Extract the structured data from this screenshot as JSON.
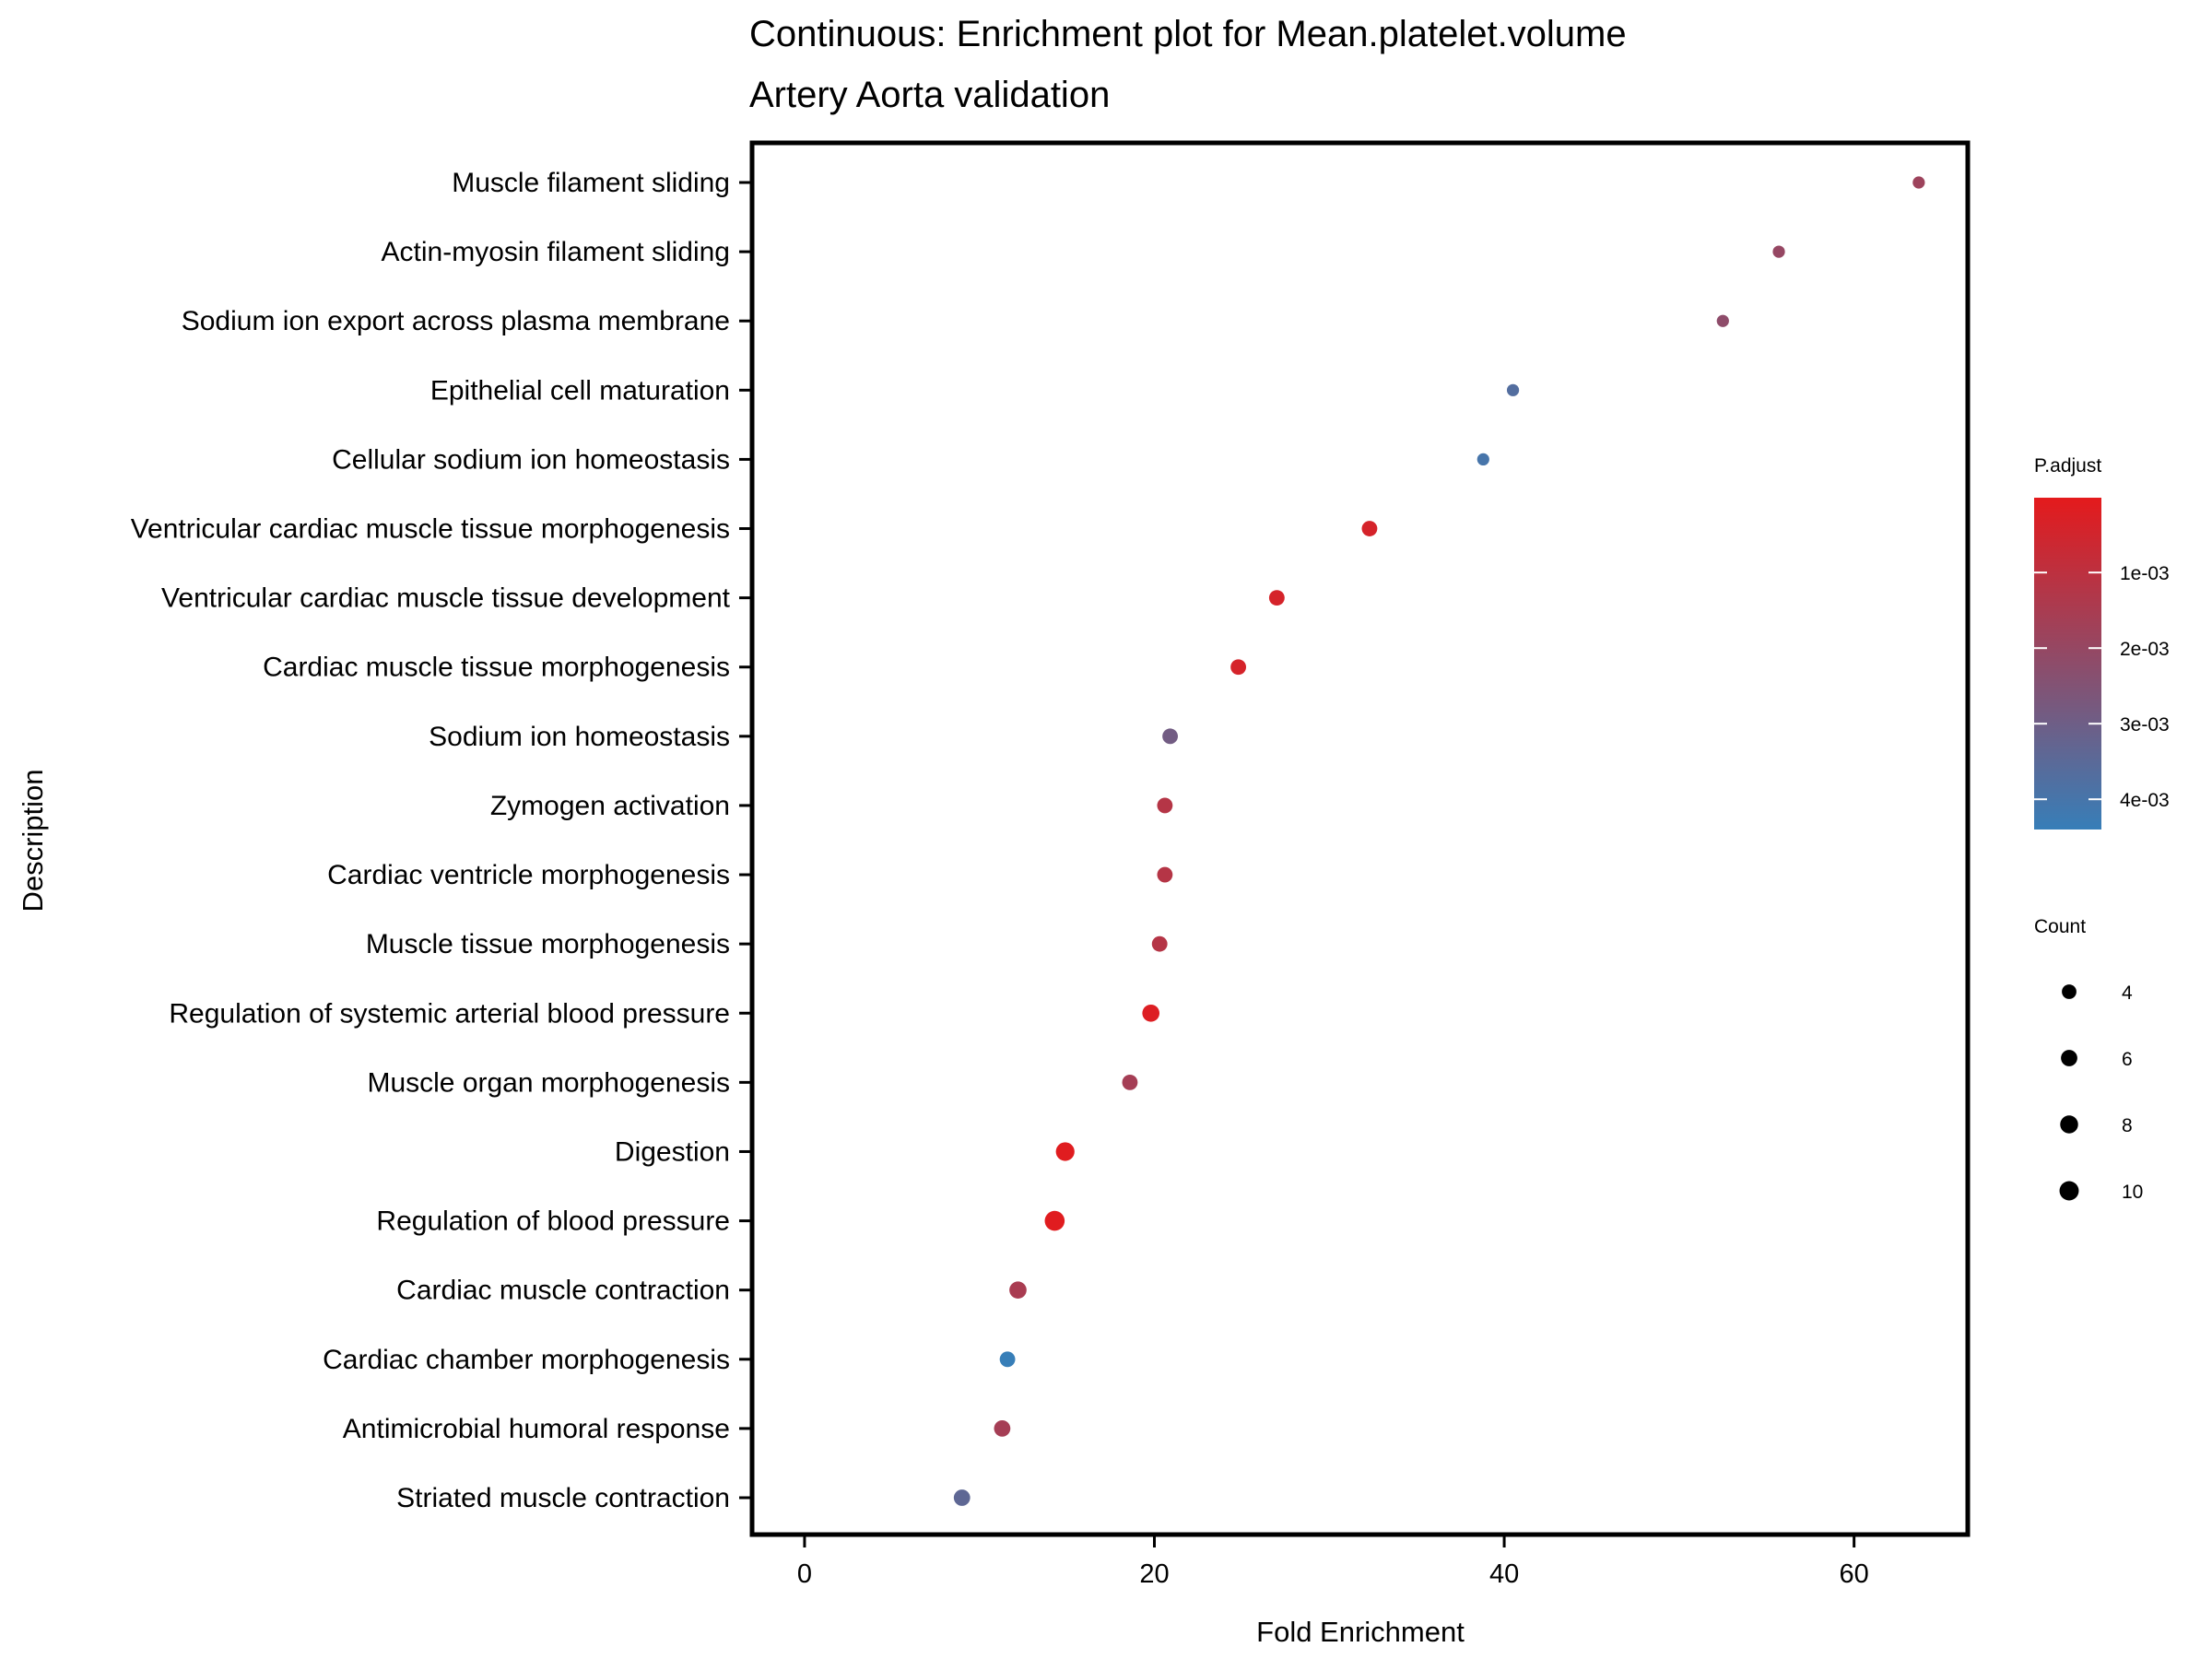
{
  "chart_data": {
    "type": "scatter",
    "title": "Continuous: Enrichment plot for Mean.platelet.volume",
    "subtitle": "Artery Aorta validation",
    "xlabel": "Fold Enrichment",
    "ylabel": "Description",
    "xlim": [
      -3,
      66.5
    ],
    "xticks": [
      "0",
      "20",
      "40",
      "60"
    ],
    "xtick_values": [
      0,
      20,
      40,
      60
    ],
    "grid": false,
    "legend_position": "right",
    "color_legend": {
      "title": "P.adjust",
      "tick_labels": [
        "1e-03",
        "2e-03",
        "3e-03",
        "4e-03"
      ],
      "tick_values": [
        0.001,
        0.002,
        0.003,
        0.004
      ],
      "range": [
        1e-05,
        0.0044
      ],
      "low_color": "#e41a1c",
      "high_color": "#377eb8"
    },
    "size_legend": {
      "title": "Count",
      "labels": [
        "4",
        "6",
        "8",
        "10"
      ],
      "values": [
        4,
        6,
        8,
        10
      ]
    },
    "points": [
      {
        "label": "Muscle filament sliding",
        "x": 63.7,
        "count": 2,
        "padj": 0.0018
      },
      {
        "label": "Actin-myosin filament sliding",
        "x": 55.7,
        "count": 2,
        "padj": 0.002
      },
      {
        "label": "Sodium ion export across plasma membrane",
        "x": 52.5,
        "count": 2,
        "padj": 0.0022
      },
      {
        "label": "Epithelial cell maturation",
        "x": 40.5,
        "count": 2,
        "padj": 0.0037
      },
      {
        "label": "Cellular sodium ion homeostasis",
        "x": 38.8,
        "count": 2,
        "padj": 0.004
      },
      {
        "label": "Ventricular cardiac muscle tissue morphogenesis",
        "x": 32.3,
        "count": 5,
        "padj": 0.0004
      },
      {
        "label": "Ventricular cardiac muscle tissue development",
        "x": 27.0,
        "count": 5,
        "padj": 0.0004
      },
      {
        "label": "Cardiac muscle tissue morphogenesis",
        "x": 24.8,
        "count": 5,
        "padj": 0.0004
      },
      {
        "label": "Sodium ion homeostasis",
        "x": 20.9,
        "count": 5,
        "padj": 0.0029
      },
      {
        "label": "Zymogen activation",
        "x": 20.6,
        "count": 5,
        "padj": 0.0012
      },
      {
        "label": "Cardiac ventricle morphogenesis",
        "x": 20.6,
        "count": 5,
        "padj": 0.0012
      },
      {
        "label": "Muscle tissue morphogenesis",
        "x": 20.3,
        "count": 5,
        "padj": 0.0012
      },
      {
        "label": "Regulation of systemic arterial blood pressure",
        "x": 19.8,
        "count": 7,
        "padj": 0.0002
      },
      {
        "label": "Muscle organ morphogenesis",
        "x": 18.6,
        "count": 5,
        "padj": 0.0016
      },
      {
        "label": "Digestion",
        "x": 14.9,
        "count": 9,
        "padj": 0.0001
      },
      {
        "label": "Regulation of blood pressure",
        "x": 14.3,
        "count": 11,
        "padj": 0.0001
      },
      {
        "label": "Cardiac muscle contraction",
        "x": 12.2,
        "count": 7,
        "padj": 0.0015
      },
      {
        "label": "Cardiac chamber morphogenesis",
        "x": 11.6,
        "count": 5,
        "padj": 0.0044
      },
      {
        "label": "Antimicrobial humoral response",
        "x": 11.3,
        "count": 6,
        "padj": 0.0016
      },
      {
        "label": "Striated muscle contraction",
        "x": 9.0,
        "count": 6,
        "padj": 0.0034
      }
    ]
  }
}
